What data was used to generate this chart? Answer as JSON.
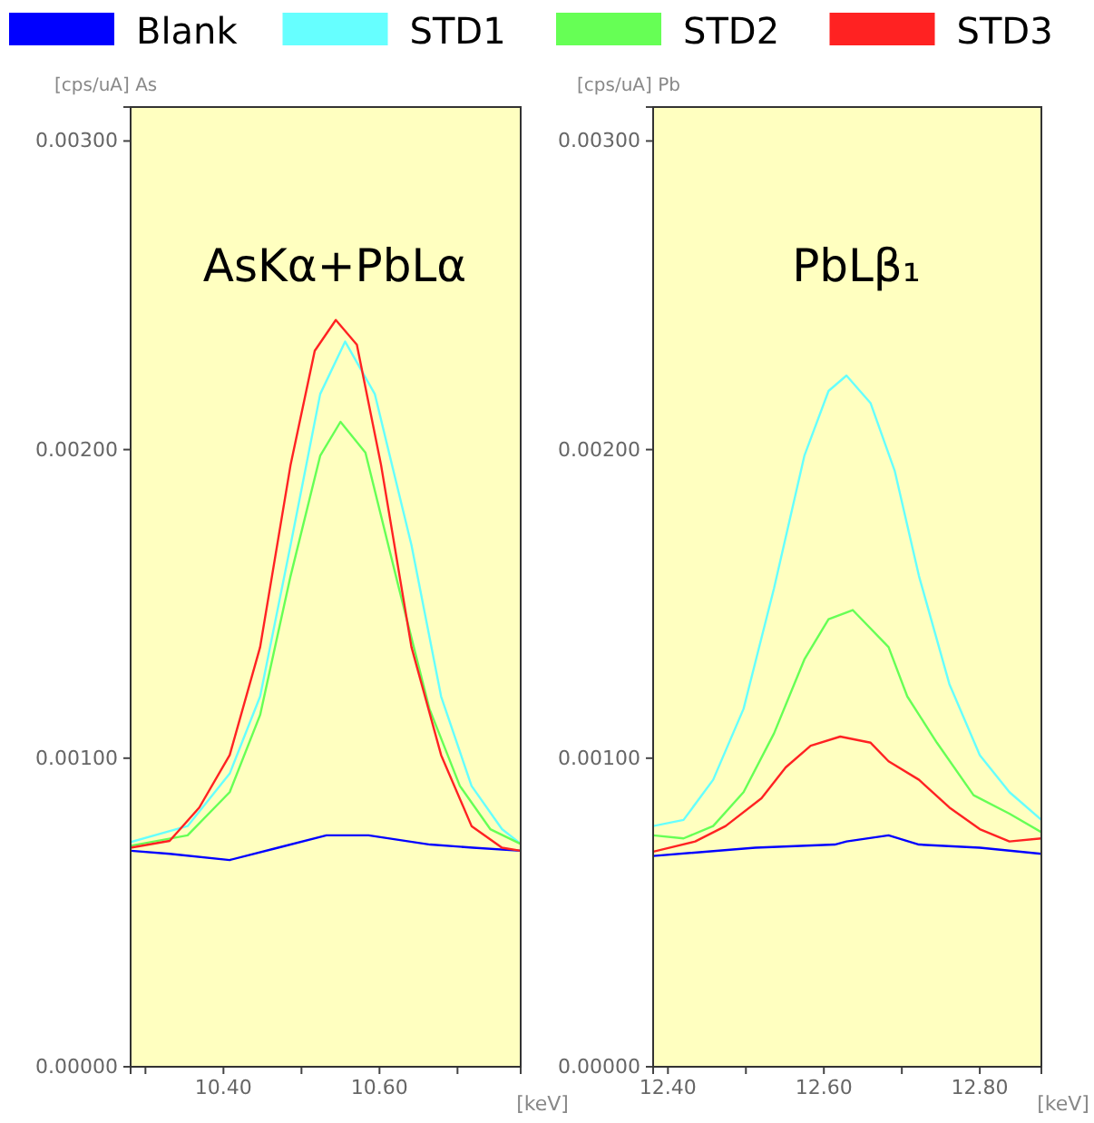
{
  "chart_data": [
    {
      "type": "line",
      "title": "AsKα+PbLα",
      "ylabel": "[cps/uA] As",
      "xlabel": "[keV]",
      "legend": "top",
      "xlim": [
        10.281,
        10.781
      ],
      "ylim": [
        0,
        0.00311
      ],
      "xticks": [
        {
          "value": 10.3,
          "label": null
        },
        {
          "value": 10.4,
          "label": "10.40"
        },
        {
          "value": 10.5,
          "label": null
        },
        {
          "value": 10.6,
          "label": "10.60"
        },
        {
          "value": 10.7,
          "label": null
        }
      ],
      "yticks": [
        {
          "value": 0,
          "label": "0.00000"
        },
        {
          "value": 0.001,
          "label": "0.00100"
        },
        {
          "value": 0.002,
          "label": "0.00200"
        },
        {
          "value": 0.003,
          "label": "0.00300"
        }
      ],
      "series": [
        {
          "name": "Blank",
          "color": "#0000ff",
          "x": [
            10.281,
            10.331,
            10.408,
            10.47,
            10.532,
            10.586,
            10.665,
            10.72,
            10.781
          ],
          "values": [
            0.0007,
            0.00069,
            0.00067,
            0.00071,
            0.00075,
            0.00075,
            0.00072,
            0.00071,
            0.0007
          ]
        },
        {
          "name": "STD1",
          "color": "#66ffff",
          "x": [
            10.281,
            10.354,
            10.408,
            10.447,
            10.486,
            10.524,
            10.556,
            10.594,
            10.641,
            10.679,
            10.718,
            10.757,
            10.781
          ],
          "values": [
            0.000728,
            0.00078,
            0.00095,
            0.0012,
            0.00169,
            0.00218,
            0.00235,
            0.00218,
            0.00169,
            0.0012,
            0.00091,
            0.00077,
            0.000722
          ]
        },
        {
          "name": "STD2",
          "color": "#66ff55",
          "x": [
            10.281,
            10.354,
            10.408,
            10.447,
            10.486,
            10.524,
            10.55,
            10.582,
            10.625,
            10.664,
            10.703,
            10.742,
            10.781
          ],
          "values": [
            0.000716,
            0.00075,
            0.00089,
            0.00114,
            0.00159,
            0.00198,
            0.00209,
            0.00199,
            0.00155,
            0.00116,
            0.00091,
            0.00077,
            0.000722
          ]
        },
        {
          "name": "STD3",
          "color": "#ff2222",
          "x": [
            10.281,
            10.331,
            10.369,
            10.408,
            10.447,
            10.486,
            10.517,
            10.544,
            10.571,
            10.602,
            10.641,
            10.679,
            10.718,
            10.757,
            10.781
          ],
          "values": [
            0.00071,
            0.000732,
            0.00084,
            0.00101,
            0.00136,
            0.00195,
            0.00232,
            0.00242,
            0.00234,
            0.00195,
            0.00136,
            0.00101,
            0.00078,
            0.00071,
            0.0007
          ]
        }
      ]
    },
    {
      "type": "line",
      "title": "PbLβ₁",
      "ylabel": "[cps/uA] Pb",
      "xlabel": "[keV]",
      "xlim": [
        12.381,
        12.879
      ],
      "ylim": [
        0,
        0.00311
      ],
      "xticks": [
        {
          "value": 12.4,
          "label": "12.40"
        },
        {
          "value": 12.5,
          "label": null
        },
        {
          "value": 12.6,
          "label": "12.60"
        },
        {
          "value": 12.7,
          "label": null
        },
        {
          "value": 12.8,
          "label": "12.80"
        }
      ],
      "yticks": [
        {
          "value": 0,
          "label": "0.00000"
        },
        {
          "value": 0.001,
          "label": "0.00100"
        },
        {
          "value": 0.002,
          "label": "0.00200"
        },
        {
          "value": 0.003,
          "label": "0.00300"
        }
      ],
      "series": [
        {
          "color": "#0000ff",
          "x": [
            12.381,
            12.512,
            12.614,
            12.629,
            12.683,
            12.722,
            12.8,
            12.879
          ],
          "values": [
            0.000683,
            0.00071,
            0.00072,
            0.00073,
            0.00075,
            0.00072,
            0.00071,
            0.00069
          ]
        },
        {
          "color": "#66ffff",
          "x": [
            12.381,
            12.42,
            12.458,
            12.497,
            12.536,
            12.575,
            12.606,
            12.629,
            12.66,
            12.691,
            12.722,
            12.761,
            12.8,
            12.838,
            12.879
          ],
          "values": [
            0.00078,
            0.0008,
            0.00093,
            0.00116,
            0.00155,
            0.00198,
            0.00219,
            0.00224,
            0.00215,
            0.00193,
            0.00159,
            0.00124,
            0.00101,
            0.00089,
            0.0008
          ]
        },
        {
          "color": "#66ff55",
          "x": [
            12.381,
            12.42,
            12.458,
            12.497,
            12.536,
            12.575,
            12.606,
            12.637,
            12.683,
            12.707,
            12.745,
            12.792,
            12.838,
            12.879
          ],
          "values": [
            0.00075,
            0.00074,
            0.00078,
            0.00089,
            0.00108,
            0.00132,
            0.00145,
            0.00148,
            0.00136,
            0.0012,
            0.00105,
            0.00088,
            0.00082,
            0.00076
          ]
        },
        {
          "color": "#ff2222",
          "x": [
            12.381,
            12.435,
            12.474,
            12.52,
            12.551,
            12.583,
            12.621,
            12.66,
            12.683,
            12.722,
            12.761,
            12.8,
            12.838,
            12.879
          ],
          "values": [
            0.000697,
            0.00073,
            0.00078,
            0.00087,
            0.00097,
            0.00104,
            0.00107,
            0.00105,
            0.00099,
            0.00093,
            0.00084,
            0.00077,
            0.00073,
            0.00074
          ]
        }
      ]
    }
  ]
}
